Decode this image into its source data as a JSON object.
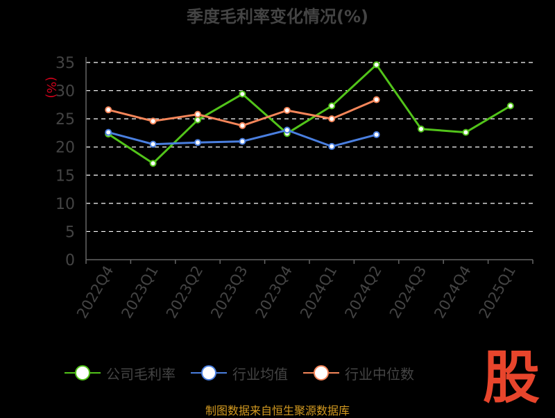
{
  "chart_data": {
    "type": "line",
    "title": "季度毛利率变化情况(%)",
    "ylabel": "(%)",
    "xlabel": "",
    "categories": [
      "2022Q4",
      "2023Q1",
      "2023Q2",
      "2023Q3",
      "2023Q4",
      "2024Q1",
      "2024Q2",
      "2024Q3",
      "2024Q4",
      "2025Q1"
    ],
    "ylim": [
      0,
      35
    ],
    "yticks": [
      0,
      5,
      10,
      15,
      20,
      25,
      30,
      35
    ],
    "grid": true,
    "series": [
      {
        "name": "公司毛利率",
        "color": "#52c41a",
        "values": [
          22.3,
          17.1,
          24.8,
          29.4,
          22.4,
          27.3,
          34.6,
          23.2,
          22.6,
          27.3
        ]
      },
      {
        "name": "行业均值",
        "color": "#4a7fe0",
        "values": [
          22.6,
          20.5,
          20.8,
          21.0,
          23.0,
          20.1,
          22.2,
          null,
          null,
          null
        ]
      },
      {
        "name": "行业中位数",
        "color": "#f5865a",
        "values": [
          26.6,
          24.6,
          25.8,
          23.8,
          26.5,
          25.0,
          28.4,
          null,
          null,
          null
        ]
      }
    ]
  },
  "source": "制图数据来自恒生聚源数据库",
  "logo_text": "股",
  "colors": {
    "background": "#000000",
    "axis": "#666666",
    "grid": "#ffffff",
    "ylabel": "#d0021b",
    "text": "#444444"
  }
}
